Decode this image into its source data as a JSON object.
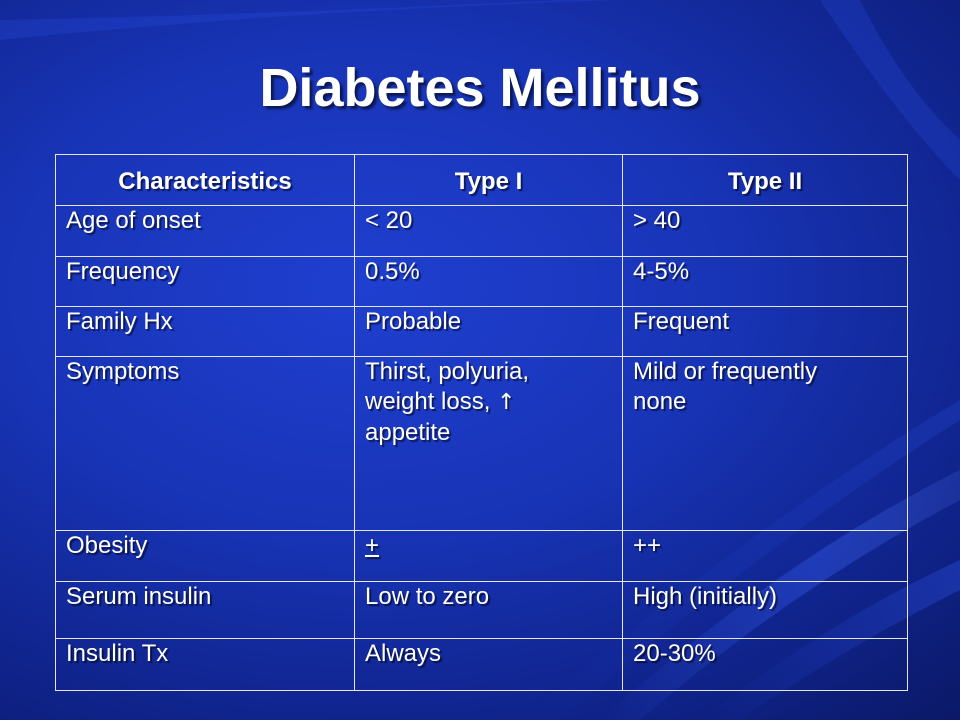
{
  "slide": {
    "title": "Diabetes Mellitus",
    "background_color": "#1834b6"
  },
  "table": {
    "headers": [
      "Characteristics",
      "Type I",
      "Type II"
    ],
    "rows": [
      {
        "characteristic": "Age of onset",
        "type1": "< 20",
        "type2": "> 40"
      },
      {
        "characteristic": "Frequency",
        "type1": "0.5%",
        "type2": "4-5%"
      },
      {
        "characteristic": "Family Hx",
        "type1": "Probable",
        "type2": "Frequent"
      },
      {
        "characteristic": "Symptoms",
        "type1_lines": [
          "Thirst, polyuria,",
          "weight loss,",
          "appetite"
        ],
        "type1_arrow": "↑",
        "type2_lines": [
          "Mild or frequently",
          "none"
        ]
      },
      {
        "characteristic": "Obesity",
        "type1": "+",
        "type2": "++"
      },
      {
        "characteristic": "Serum insulin",
        "type1": "Low to zero",
        "type2": "High (initially)"
      },
      {
        "characteristic": "Insulin Tx",
        "type1": "Always",
        "type2": "20-30%"
      }
    ]
  }
}
